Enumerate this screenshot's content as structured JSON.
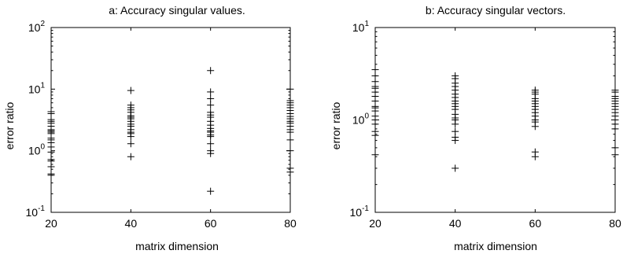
{
  "chart_data": [
    {
      "type": "scatter",
      "title": "a: Accuracy singular values.",
      "xlabel": "matrix dimension",
      "ylabel": "error ratio",
      "xlim": [
        20,
        80
      ],
      "ylim": [
        0.1,
        100
      ],
      "yscale": "log",
      "grid": false,
      "marker": "+",
      "x_ticks": [
        "20",
        "40",
        "60",
        "80"
      ],
      "y_ticks": [
        {
          "base": "10",
          "exp": "-1"
        },
        {
          "base": "10",
          "exp": "0"
        },
        {
          "base": "10",
          "exp": "1"
        },
        {
          "base": "10",
          "exp": "2"
        }
      ],
      "series": [
        {
          "x": 20,
          "y": [
            0.4,
            0.42,
            0.55,
            0.68,
            0.72,
            0.95,
            1.15,
            1.35,
            1.5,
            1.6,
            1.9,
            2.0,
            2.1,
            2.2,
            2.5,
            2.8,
            3.0,
            3.2,
            4.0,
            4.3
          ]
        },
        {
          "x": 40,
          "y": [
            0.8,
            1.3,
            1.7,
            1.9,
            2.0,
            2.2,
            2.5,
            2.7,
            3.0,
            3.3,
            3.5,
            3.7,
            4.2,
            4.6,
            5.0,
            5.5,
            9.5
          ]
        },
        {
          "x": 60,
          "y": [
            0.22,
            0.9,
            1.0,
            1.3,
            1.7,
            1.8,
            2.0,
            2.1,
            2.3,
            2.6,
            3.0,
            3.5,
            3.8,
            4.2,
            5.5,
            7.0,
            9.0,
            20.0
          ]
        },
        {
          "x": 80,
          "y": [
            0.45,
            0.52,
            1.0,
            1.5,
            2.0,
            2.2,
            2.5,
            2.8,
            3.0,
            3.3,
            3.6,
            4.0,
            4.5,
            5.0,
            5.5,
            6.0,
            6.5,
            10.0
          ]
        }
      ]
    },
    {
      "type": "scatter",
      "title": "b: Accuracy singular vectors.",
      "xlabel": "matrix dimension",
      "ylabel": "error ratio",
      "xlim": [
        20,
        80
      ],
      "ylim": [
        0.1,
        10
      ],
      "yscale": "log",
      "grid": false,
      "marker": "+",
      "x_ticks": [
        "20",
        "40",
        "60",
        "80"
      ],
      "y_ticks": [
        {
          "base": "10",
          "exp": "-1"
        },
        {
          "base": "10",
          "exp": "0"
        },
        {
          "base": "10",
          "exp": "1"
        }
      ],
      "series": [
        {
          "x": 20,
          "y": [
            0.42,
            0.68,
            0.75,
            0.9,
            1.0,
            1.1,
            1.25,
            1.35,
            1.4,
            1.6,
            1.8,
            2.0,
            2.2,
            2.3,
            2.6,
            3.0,
            3.5
          ]
        },
        {
          "x": 40,
          "y": [
            0.3,
            0.6,
            0.65,
            0.75,
            0.9,
            1.0,
            1.05,
            1.15,
            1.3,
            1.4,
            1.5,
            1.6,
            1.75,
            1.9,
            2.1,
            2.3,
            2.5,
            2.8,
            3.0
          ]
        },
        {
          "x": 60,
          "y": [
            0.4,
            0.45,
            0.85,
            0.95,
            1.0,
            1.1,
            1.2,
            1.3,
            1.4,
            1.5,
            1.6,
            1.7,
            1.9,
            2.0,
            2.1
          ]
        },
        {
          "x": 80,
          "y": [
            0.42,
            0.5,
            0.8,
            0.9,
            1.0,
            1.1,
            1.2,
            1.3,
            1.4,
            1.5,
            1.6,
            1.7,
            1.8,
            2.0,
            2.1
          ]
        }
      ]
    }
  ]
}
